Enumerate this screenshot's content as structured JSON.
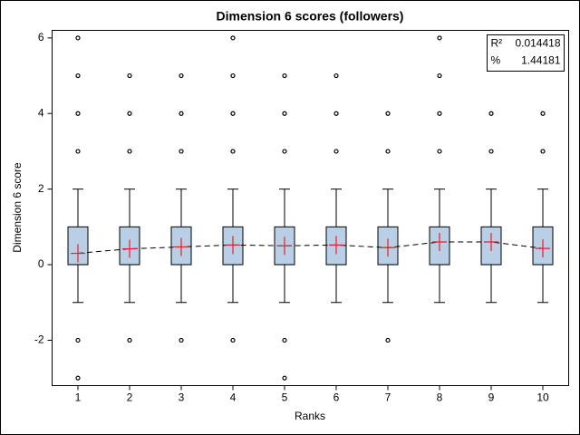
{
  "chart_data": {
    "type": "box",
    "title": "Dimension 6 scores (followers)",
    "x_label": "Ranks",
    "y_label": "Dimension 6 score",
    "categories": [
      "1",
      "2",
      "3",
      "4",
      "5",
      "6",
      "7",
      "8",
      "9",
      "10"
    ],
    "box_color": "#b9cfe6",
    "mean_color": "#e8202a",
    "ylim": [
      -3.2,
      6.2
    ],
    "yticks": [
      -2,
      0,
      2,
      4,
      6
    ],
    "boxes": [
      {
        "q1": 0,
        "median": 0,
        "q3": 1,
        "whisker_low": -1,
        "whisker_high": 2,
        "mean": 0.3,
        "outliers": [
          6,
          5,
          4,
          3,
          -2,
          -3
        ]
      },
      {
        "q1": 0,
        "median": 0,
        "q3": 1,
        "whisker_low": -1,
        "whisker_high": 2,
        "mean": 0.42,
        "outliers": [
          5,
          4,
          3,
          -2
        ]
      },
      {
        "q1": 0,
        "median": 0,
        "q3": 1,
        "whisker_low": -1,
        "whisker_high": 2,
        "mean": 0.47,
        "outliers": [
          5,
          4,
          3,
          -2
        ]
      },
      {
        "q1": 0,
        "median": 0,
        "q3": 1,
        "whisker_low": -1,
        "whisker_high": 2,
        "mean": 0.52,
        "outliers": [
          6,
          5,
          4,
          3,
          -2
        ]
      },
      {
        "q1": 0,
        "median": 0,
        "q3": 1,
        "whisker_low": -1,
        "whisker_high": 2,
        "mean": 0.5,
        "outliers": [
          5,
          4,
          3,
          -2,
          -3
        ]
      },
      {
        "q1": 0,
        "median": 0,
        "q3": 1,
        "whisker_low": -1,
        "whisker_high": 2,
        "mean": 0.52,
        "outliers": [
          5,
          4,
          3
        ]
      },
      {
        "q1": 0,
        "median": 0,
        "q3": 1,
        "whisker_low": -1,
        "whisker_high": 2,
        "mean": 0.45,
        "outliers": [
          4,
          3,
          -2
        ]
      },
      {
        "q1": 0,
        "median": 0,
        "q3": 1,
        "whisker_low": -1,
        "whisker_high": 2,
        "mean": 0.6,
        "outliers": [
          6,
          5,
          4,
          3
        ]
      },
      {
        "q1": 0,
        "median": 0,
        "q3": 1,
        "whisker_low": -1,
        "whisker_high": 2,
        "mean": 0.6,
        "outliers": [
          4,
          3
        ]
      },
      {
        "q1": 0,
        "median": 0,
        "q3": 1,
        "whisker_low": -1,
        "whisker_high": 2,
        "mean": 0.43,
        "outliers": [
          4,
          3
        ]
      }
    ],
    "stats": [
      {
        "label": "R²",
        "value": 0.014418
      },
      {
        "label": "%",
        "value": 1.44181
      }
    ]
  }
}
